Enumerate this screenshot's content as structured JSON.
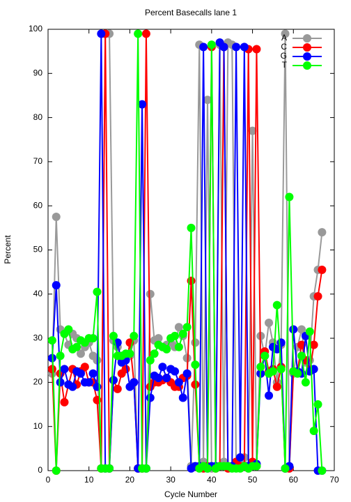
{
  "chart_data": {
    "type": "line",
    "title": "Percent Basecalls lane 1",
    "x_label": "Cycle Number",
    "y_label": "Percent",
    "x": [
      1,
      2,
      3,
      4,
      5,
      6,
      7,
      8,
      9,
      10,
      11,
      12,
      13,
      14,
      15,
      16,
      17,
      18,
      19,
      20,
      21,
      22,
      23,
      24,
      25,
      26,
      27,
      28,
      29,
      30,
      31,
      32,
      33,
      34,
      35,
      36,
      37,
      38,
      39,
      40,
      41,
      42,
      43,
      44,
      45,
      46,
      47,
      48,
      49,
      50,
      51,
      52,
      53,
      54,
      55,
      56,
      57,
      58,
      59,
      60,
      61,
      62,
      63,
      64,
      65,
      66,
      67
    ],
    "xlim": [
      0,
      70
    ],
    "xticks": [
      0,
      10,
      20,
      30,
      40,
      50,
      60,
      70
    ],
    "ylim": [
      0,
      100
    ],
    "yticks": [
      0,
      10,
      20,
      30,
      40,
      50,
      60,
      70,
      80,
      90,
      100
    ],
    "legend_position": "upper right",
    "series": [
      {
        "name": "A",
        "color": "#999999",
        "values": [
          22,
          57.5,
          32,
          31,
          28.5,
          31,
          30,
          26.5,
          28,
          29,
          26,
          25,
          0.5,
          99,
          99,
          29.5,
          28,
          25,
          25.5,
          26,
          29.5,
          0.5,
          0.5,
          0.5,
          40,
          29.5,
          30,
          28,
          28.5,
          29,
          28,
          32.5,
          30.5,
          25.5,
          1,
          29,
          96.5,
          2,
          84,
          0.5,
          1,
          96.5,
          2,
          97,
          96.5,
          1,
          2,
          3,
          0.5,
          77,
          1,
          30.5,
          26,
          33.5,
          29,
          20,
          28.5,
          99,
          0.5,
          22,
          28,
          32,
          24.5,
          25,
          39.5,
          45.5,
          54
        ]
      },
      {
        "name": "C",
        "color": "#ff0000",
        "values": [
          23,
          0,
          22,
          15.5,
          19.5,
          23,
          19.5,
          22.5,
          23.5,
          20,
          20,
          16,
          0.5,
          99,
          0.5,
          20.5,
          18.5,
          22,
          23,
          29,
          20,
          0.5,
          0.5,
          99,
          19,
          20,
          20,
          20.5,
          21,
          20,
          19,
          19,
          21,
          21.5,
          43,
          19.5,
          1,
          0.5,
          1,
          96,
          0.5,
          1,
          96,
          0.5,
          1,
          2,
          1,
          1,
          95.5,
          2,
          95.5,
          22,
          27,
          22.5,
          23,
          19,
          23.5,
          0.5,
          0.5,
          22.5,
          22.5,
          28.5,
          25,
          22.5,
          28.5,
          39.5,
          45.5
        ]
      },
      {
        "name": "G",
        "color": "#0000ff",
        "values": [
          25.5,
          42,
          20,
          23,
          19.5,
          19,
          22.5,
          22,
          20,
          20,
          22,
          19,
          99,
          0.5,
          0.5,
          20.5,
          29,
          24.5,
          25,
          19,
          20,
          0.5,
          83,
          0.5,
          16.5,
          21.5,
          21,
          23.5,
          21,
          23,
          22.5,
          20,
          16.5,
          22,
          0.5,
          1,
          1,
          96,
          0.5,
          1,
          1,
          97,
          96,
          1,
          1,
          96,
          3,
          96,
          1,
          1,
          1.5,
          22,
          26,
          17,
          28,
          27.5,
          29,
          0.5,
          1,
          32,
          22.5,
          22,
          30.5,
          22.5,
          23,
          0,
          0
        ]
      },
      {
        "name": "T",
        "color": "#00ff00",
        "values": [
          29.5,
          0,
          26,
          31,
          32,
          27.5,
          28,
          29.5,
          29,
          30,
          30,
          40.5,
          0.5,
          0.5,
          0.5,
          30.5,
          26,
          26,
          26.5,
          26.5,
          30.5,
          99,
          0.5,
          0.5,
          25,
          26.5,
          28.5,
          28,
          27.5,
          30,
          30.5,
          28,
          31,
          32.5,
          55,
          24,
          0.5,
          1,
          0.5,
          96.5,
          0.5,
          1,
          1,
          1,
          0.5,
          0.5,
          0.5,
          1,
          0.5,
          1,
          1,
          23.5,
          26,
          22,
          22.5,
          37.5,
          23,
          0.5,
          62,
          22.5,
          22,
          26,
          20,
          31.5,
          9,
          15,
          0
        ]
      }
    ]
  }
}
